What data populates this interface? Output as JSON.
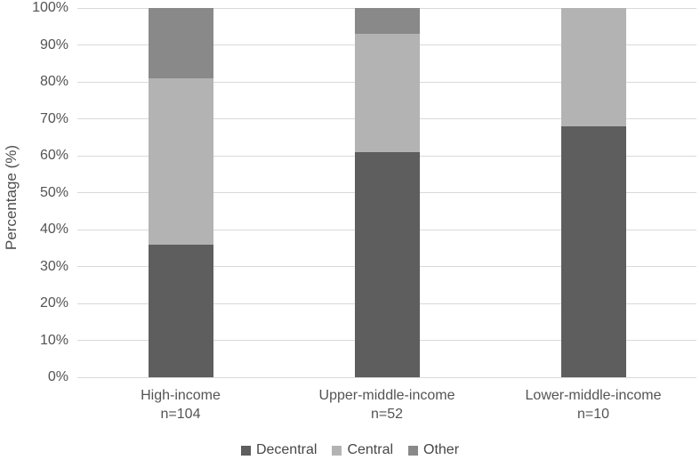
{
  "colors": {
    "decentral": "#5e5e5e",
    "central": "#b3b3b3",
    "other": "#898989",
    "gridline": "#d9d9d9",
    "text": "#545454"
  },
  "chart_data": {
    "type": "bar",
    "stacked": true,
    "title": "",
    "xlabel": "",
    "ylabel": "Percentage (%)",
    "ylim": [
      0,
      100
    ],
    "grid": true,
    "legend_position": "bottom",
    "yticks": [
      "0%",
      "10%",
      "20%",
      "30%",
      "40%",
      "50%",
      "60%",
      "70%",
      "80%",
      "90%",
      "100%"
    ],
    "categories": [
      "High-income",
      "Upper-middle-income",
      "Lower-middle-income"
    ],
    "category_sublabels": [
      "n=104",
      "n=52",
      "n=10"
    ],
    "series": [
      {
        "name": "Decentral",
        "color": "#5e5e5e",
        "values": [
          36,
          61,
          68
        ]
      },
      {
        "name": "Central",
        "color": "#b3b3b3",
        "values": [
          45,
          32,
          32
        ]
      },
      {
        "name": "Other",
        "color": "#898989",
        "values": [
          19,
          7,
          0
        ]
      }
    ]
  }
}
